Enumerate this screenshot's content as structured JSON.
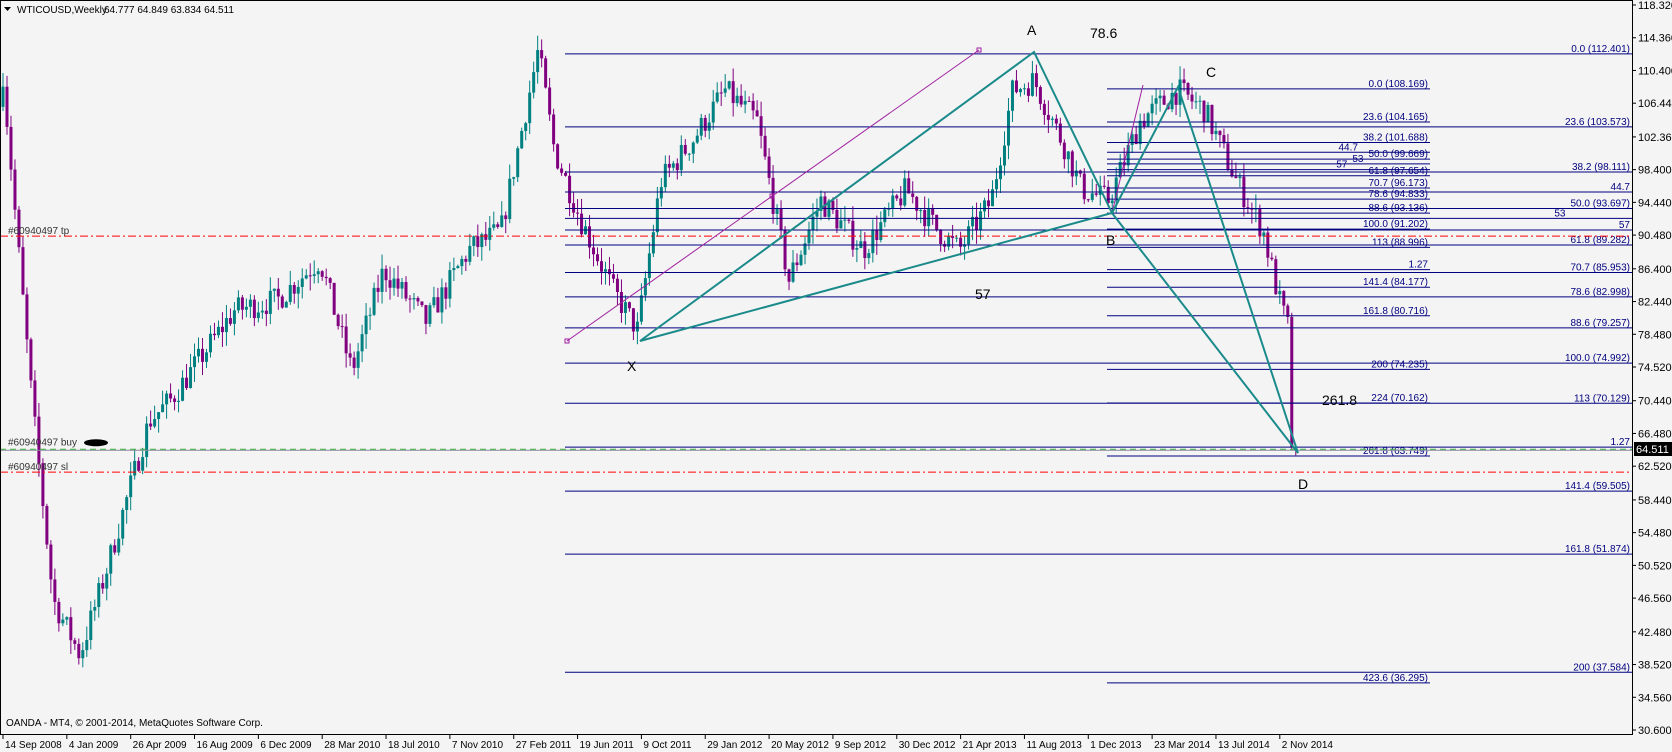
{
  "header": {
    "symbol_timeframe": "WTICOUSD,Weekly",
    "ohlc": "64.777 64.849 63.834 64.511",
    "menu_icon": "triangle-down-icon"
  },
  "footer": {
    "copyright": "OANDA - MT4, © 2001-2014, MetaQuotes Software Corp."
  },
  "colors": {
    "bull": "#008080",
    "bear": "#800080",
    "pattern": "#1b8a8a",
    "fib": "#000080",
    "order_red": "#ff0000",
    "order_green": "#3cb043",
    "background": "#f4f4f4"
  },
  "price_axis": {
    "labels": [
      "118.320",
      "114.360",
      "110.400",
      "106.440",
      "102.360",
      "98.400",
      "94.440",
      "90.480",
      "86.400",
      "82.440",
      "78.480",
      "74.520",
      "70.440",
      "66.480",
      "62.520",
      "58.440",
      "54.480",
      "50.520",
      "46.560",
      "42.480",
      "38.520",
      "34.560",
      "30.600"
    ],
    "current_price": "64.511"
  },
  "time_axis": {
    "labels": [
      "14 Sep 2008",
      "4 Jan 2009",
      "26 Apr 2009",
      "16 Aug 2009",
      "6 Dec 2009",
      "28 Mar 2010",
      "18 Jul 2010",
      "7 Nov 2010",
      "27 Feb 2011",
      "19 Jun 2011",
      "9 Oct 2011",
      "29 Jan 2012",
      "20 May 2012",
      "9 Sep 2012",
      "30 Dec 2012",
      "21 Apr 2013",
      "11 Aug 2013",
      "1 Dec 2013",
      "23 Mar 2014",
      "13 Jul 2014",
      "2 Nov 2014"
    ]
  },
  "orders": {
    "tp": {
      "label": "#60940497 tp",
      "price": 90.36
    },
    "buy": {
      "label": "#60940497 buy",
      "price": 64.511
    },
    "sl": {
      "label": "#60940497 sl",
      "price": 61.8
    }
  },
  "fib_set_1": [
    {
      "label": "0.0 (112.401)",
      "price": 112.401
    },
    {
      "label": "23.6 (103.573)",
      "price": 103.573
    },
    {
      "label": "38.2 (98.111)",
      "price": 98.111
    },
    {
      "label": "44.7",
      "price": 95.7
    },
    {
      "label": "50.0 (93.697)",
      "price": 93.697
    },
    {
      "label": "53",
      "price": 92.5
    },
    {
      "label": "57",
      "price": 91.1
    },
    {
      "label": "61.8 (89.282)",
      "price": 89.282
    },
    {
      "label": "70.7 (85.953)",
      "price": 85.953
    },
    {
      "label": "78.6 (82.998)",
      "price": 82.998
    },
    {
      "label": "88.6 (79.257)",
      "price": 79.257
    },
    {
      "label": "100.0 (74.992)",
      "price": 74.992
    },
    {
      "label": "113 (70.129)",
      "price": 70.129
    },
    {
      "label": "1.27",
      "price": 64.83
    },
    {
      "label": "141.4 (59.505)",
      "price": 59.505
    },
    {
      "label": "161.8 (51.874)",
      "price": 51.874
    },
    {
      "label": "200  (37.584)",
      "price": 37.584
    }
  ],
  "fib_set_2": [
    {
      "label": "0.0 (108.169)",
      "price": 108.169
    },
    {
      "label": "23.6 (104.165)",
      "price": 104.165
    },
    {
      "label": "38.2 (101.688)",
      "price": 101.688
    },
    {
      "label": "44.7",
      "price": 100.5
    },
    {
      "label": "50.0 (99.669)",
      "price": 99.669
    },
    {
      "label": "53",
      "price": 99.1
    },
    {
      "label": "57",
      "price": 98.4
    },
    {
      "label": "61.8 (97.654)",
      "price": 97.654
    },
    {
      "label": "70.7 (96.173)",
      "price": 96.173
    },
    {
      "label": "78.6 (94.833)",
      "price": 94.833
    },
    {
      "label": "88.6 (93.136)",
      "price": 93.136
    },
    {
      "label": "100.0 (91.202)",
      "price": 91.202
    },
    {
      "label": "113 (88.996)",
      "price": 88.996
    },
    {
      "label": "1.27",
      "price": 86.3
    },
    {
      "label": "141.4 (84.177)",
      "price": 84.177
    },
    {
      "label": "161.8 (80.716)",
      "price": 80.716
    },
    {
      "label": "200  (74.235)",
      "price": 74.235
    },
    {
      "label": "224  (70.162)",
      "price": 70.162
    },
    {
      "label": "261.8 (63.749)",
      "price": 63.749
    },
    {
      "label": "423.6 (36.295)",
      "price": 36.295
    }
  ],
  "pattern": {
    "points": {
      "X": "X",
      "A": "A",
      "B": "B",
      "C": "C",
      "D": "D"
    },
    "ratios": {
      "ab": "78.6",
      "xb": "57",
      "cd": "261.8"
    }
  }
}
